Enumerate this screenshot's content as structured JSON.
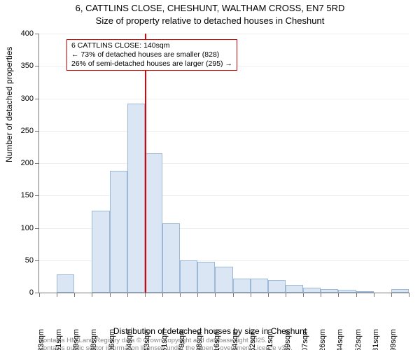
{
  "title_line1": "6, CATTLINS CLOSE, CHESHUNT, WALTHAM CROSS, EN7 5RD",
  "title_line2": "Size of property relative to detached houses in Cheshunt",
  "y_axis_label": "Number of detached properties",
  "x_axis_label": "Distribution of detached houses by size in Cheshunt",
  "footnote1": "Contains HM Land Registry data © Crown copyright and database right 2025.",
  "footnote2": "Contains public sector information licensed under the Open Government Licence v3.0.",
  "annotation": {
    "line1": "6 CATTLINS CLOSE: 140sqm",
    "line2": "← 73% of detached houses are smaller (828)",
    "line3": "26% of semi-detached houses are larger (295) →"
  },
  "chart": {
    "type": "histogram",
    "ylim": [
      0,
      400
    ],
    "ytick_step": 50,
    "y_ticks": [
      0,
      50,
      100,
      150,
      200,
      250,
      300,
      350,
      400
    ],
    "x_tick_labels": [
      "33sqm",
      "51sqm",
      "69sqm",
      "88sqm",
      "106sqm",
      "124sqm",
      "143sqm",
      "161sqm",
      "179sqm",
      "198sqm",
      "216sqm",
      "234sqm",
      "252sqm",
      "271sqm",
      "289sqm",
      "307sqm",
      "326sqm",
      "344sqm",
      "362sqm",
      "381sqm",
      "399sqm"
    ],
    "bar_values": [
      0,
      28,
      0,
      126,
      188,
      292,
      215,
      107,
      50,
      48,
      40,
      22,
      22,
      20,
      12,
      8,
      5,
      4,
      2,
      0,
      5
    ],
    "bar_fill_color": "#dbe6f5",
    "bar_border_color": "#9db8d6",
    "marker_bin_index": 6,
    "marker_color": "#e00000",
    "background_color": "#ffffff",
    "grid_color": "#eeeeee",
    "axis_color": "#777777",
    "fontsize_title": 13,
    "fontsize_axis_label": 12,
    "fontsize_tick": 11,
    "fontsize_annotation": 10.5,
    "fontsize_footnote": 9.5
  }
}
